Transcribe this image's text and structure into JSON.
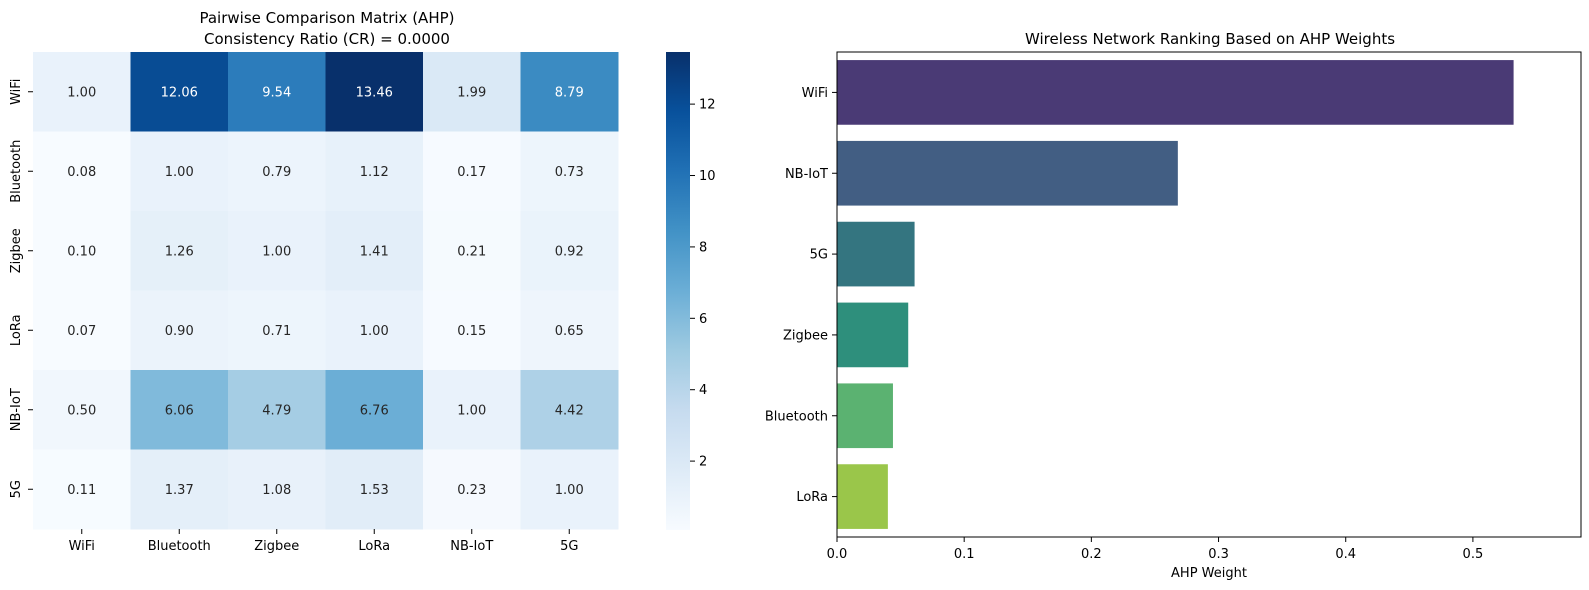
{
  "chart_data": [
    {
      "type": "heatmap",
      "title_line1": "Pairwise Comparison Matrix (AHP)",
      "title_line2": "Consistency Ratio (CR) = 0.0000",
      "rows": [
        "WiFi",
        "Bluetooth",
        "Zigbee",
        "LoRa",
        "NB-IoT",
        "5G"
      ],
      "columns": [
        "WiFi",
        "Bluetooth",
        "Zigbee",
        "LoRa",
        "NB-IoT",
        "5G"
      ],
      "values": [
        [
          1.0,
          12.06,
          9.54,
          13.46,
          1.99,
          8.79
        ],
        [
          0.08,
          1.0,
          0.79,
          1.12,
          0.17,
          0.73
        ],
        [
          0.1,
          1.26,
          1.0,
          1.41,
          0.21,
          0.92
        ],
        [
          0.07,
          0.9,
          0.71,
          1.0,
          0.15,
          0.65
        ],
        [
          0.5,
          6.06,
          4.79,
          6.76,
          1.0,
          4.42
        ],
        [
          0.11,
          1.37,
          1.08,
          1.53,
          0.23,
          1.0
        ]
      ],
      "colormap": "Blues",
      "colorbar_range": [
        0.07,
        13.46
      ],
      "colorbar_ticks": [
        "2",
        "4",
        "6",
        "8",
        "10",
        "12"
      ],
      "colorbar_tick_values": [
        2,
        4,
        6,
        8,
        10,
        12
      ]
    },
    {
      "type": "bar",
      "orientation": "horizontal",
      "title": "Wireless Network Ranking Based on AHP Weights",
      "categories": [
        "WiFi",
        "NB-IoT",
        "5G",
        "Zigbee",
        "Bluetooth",
        "LoRa"
      ],
      "values": [
        0.532,
        0.268,
        0.061,
        0.056,
        0.044,
        0.04
      ],
      "colors": [
        "#4a3a75",
        "#425e83",
        "#347580",
        "#2e8f7c",
        "#5bb271",
        "#9ac64a"
      ],
      "xlabel": "AHP Weight",
      "xlim": [
        0,
        0.585
      ],
      "xticks": [
        0.0,
        0.1,
        0.2,
        0.3,
        0.4,
        0.5
      ],
      "xtick_labels": [
        "0.0",
        "0.1",
        "0.2",
        "0.3",
        "0.4",
        "0.5"
      ]
    }
  ]
}
